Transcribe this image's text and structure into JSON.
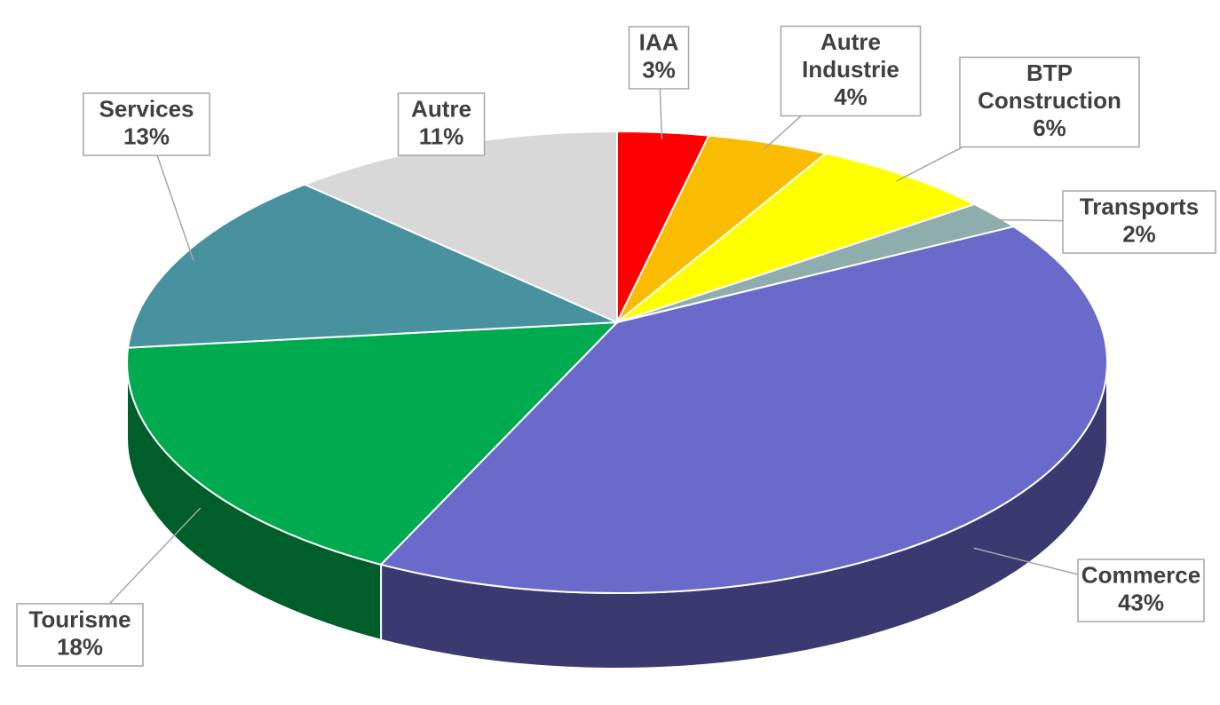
{
  "chart_data": {
    "type": "pie",
    "categories": [
      "IAA",
      "Autre Industrie",
      "BTP Construction",
      "Transports",
      "Commerce",
      "Tourisme",
      "Services",
      "Autre"
    ],
    "values": [
      3,
      4,
      6,
      2,
      43,
      18,
      13,
      11
    ],
    "value_labels": [
      "3%",
      "4%",
      "6%",
      "2%",
      "43%",
      "18%",
      "13%",
      "11%"
    ],
    "colors": [
      "#ff0000",
      "#f9bc00",
      "#ffff00",
      "#8fadad",
      "#6a6acb",
      "#00aa4f",
      "#47929e",
      "#d8d8d8"
    ]
  }
}
